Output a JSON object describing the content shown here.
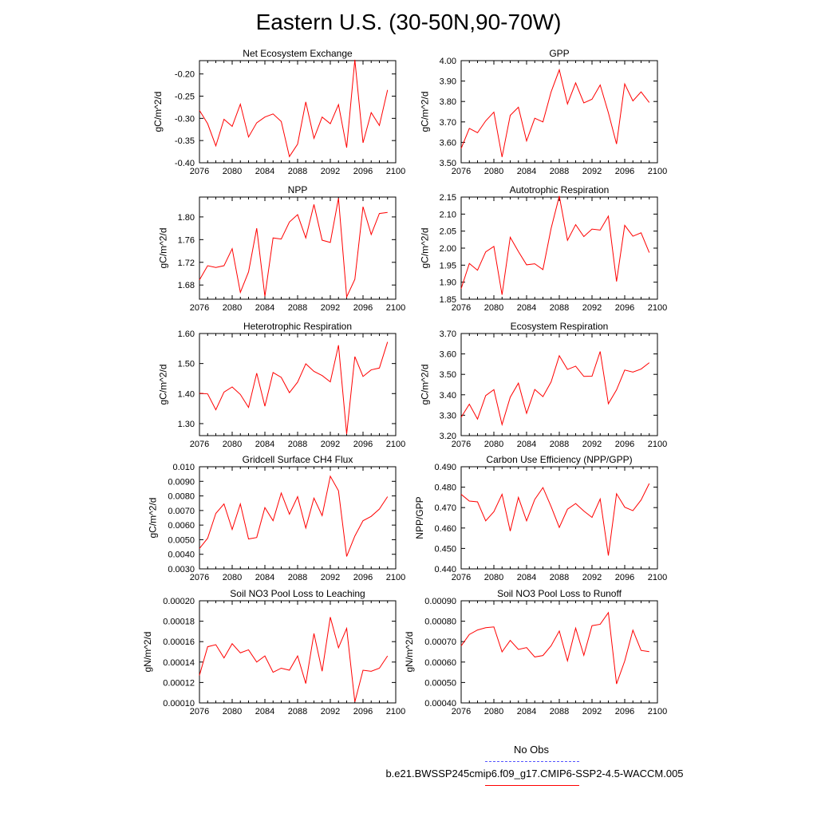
{
  "title": "Eastern U.S. (30-50N,90-70W)",
  "legend": [
    {
      "label": "No Obs",
      "color": "#0000ff",
      "style": "dashed"
    },
    {
      "label": "b.e21.BWSSP245cmip6.f09_g17.CMIP6-SSP2-4.5-WACCM.005",
      "color": "#ff0000",
      "style": "solid"
    }
  ],
  "chart_data": [
    {
      "type": "line",
      "title": "Net Ecosystem Exchange",
      "ylabel": "gC/m^2/d",
      "xlim": [
        2076,
        2100
      ],
      "xticks": [
        "2076",
        "2080",
        "2084",
        "2088",
        "2092",
        "2096",
        "2100"
      ],
      "ylim": [
        -0.4,
        -0.17
      ],
      "yticks": [
        -0.4,
        -0.35,
        -0.3,
        -0.25,
        -0.2
      ],
      "yticklabels": [
        "-0.40",
        "-0.35",
        "-0.30",
        "-0.25",
        "-0.20"
      ],
      "series": [
        {
          "color": "#ff0000",
          "x": [
            2076,
            2077,
            2078,
            2079,
            2080,
            2081,
            2082,
            2083,
            2084,
            2085,
            2086,
            2087,
            2088,
            2089,
            2090,
            2091,
            2092,
            2093,
            2094,
            2095,
            2096,
            2097,
            2098,
            2099
          ],
          "values": [
            -0.282,
            -0.312,
            -0.362,
            -0.302,
            -0.318,
            -0.268,
            -0.342,
            -0.31,
            -0.297,
            -0.29,
            -0.307,
            -0.386,
            -0.358,
            -0.263,
            -0.345,
            -0.297,
            -0.312,
            -0.269,
            -0.366,
            -0.168,
            -0.355,
            -0.287,
            -0.316,
            -0.236
          ]
        }
      ]
    },
    {
      "type": "line",
      "title": "GPP",
      "ylabel": "gC/m^2/d",
      "xlim": [
        2076,
        2100
      ],
      "xticks": [
        "2076",
        "2080",
        "2084",
        "2088",
        "2092",
        "2096",
        "2100"
      ],
      "ylim": [
        3.5,
        4.0
      ],
      "yticks": [
        3.5,
        3.6,
        3.7,
        3.8,
        3.9,
        4.0
      ],
      "yticklabels": [
        "3.50",
        "3.60",
        "3.70",
        "3.80",
        "3.90",
        "4.00"
      ],
      "series": [
        {
          "color": "#ff0000",
          "x": [
            2076,
            2077,
            2078,
            2079,
            2080,
            2081,
            2082,
            2083,
            2084,
            2085,
            2086,
            2087,
            2088,
            2089,
            2090,
            2091,
            2092,
            2093,
            2094,
            2095,
            2096,
            2097,
            2098,
            2099
          ],
          "values": [
            3.57,
            3.668,
            3.647,
            3.705,
            3.748,
            3.528,
            3.732,
            3.772,
            3.607,
            3.718,
            3.7,
            3.847,
            3.955,
            3.788,
            3.891,
            3.793,
            3.811,
            3.881,
            3.745,
            3.592,
            3.886,
            3.803,
            3.847,
            3.795
          ]
        }
      ]
    },
    {
      "type": "line",
      "title": "NPP",
      "ylabel": "gC/m^2/d",
      "xlim": [
        2076,
        2100
      ],
      "xticks": [
        "2076",
        "2080",
        "2084",
        "2088",
        "2092",
        "2096",
        "2100"
      ],
      "ylim": [
        1.655,
        1.835
      ],
      "yticks": [
        1.68,
        1.72,
        1.76,
        1.8
      ],
      "yticklabels": [
        "1.68",
        "1.72",
        "1.76",
        "1.80"
      ],
      "series": [
        {
          "color": "#ff0000",
          "x": [
            2076,
            2077,
            2078,
            2079,
            2080,
            2081,
            2082,
            2083,
            2084,
            2085,
            2086,
            2087,
            2088,
            2089,
            2090,
            2091,
            2092,
            2093,
            2094,
            2095,
            2096,
            2097,
            2098,
            2099
          ],
          "values": [
            1.689,
            1.714,
            1.711,
            1.714,
            1.744,
            1.667,
            1.703,
            1.78,
            1.66,
            1.763,
            1.761,
            1.791,
            1.804,
            1.763,
            1.822,
            1.759,
            1.755,
            1.833,
            1.659,
            1.69,
            1.818,
            1.769,
            1.806,
            1.808
          ]
        }
      ]
    },
    {
      "type": "line",
      "title": "Autotrophic Respiration",
      "ylabel": "gC/m^2/d",
      "xlim": [
        2076,
        2100
      ],
      "xticks": [
        "2076",
        "2080",
        "2084",
        "2088",
        "2092",
        "2096",
        "2100"
      ],
      "ylim": [
        1.85,
        2.15
      ],
      "yticks": [
        1.85,
        1.9,
        1.95,
        2.0,
        2.05,
        2.1,
        2.15
      ],
      "yticklabels": [
        "1.85",
        "1.90",
        "1.95",
        "2.00",
        "2.05",
        "2.10",
        "2.15"
      ],
      "series": [
        {
          "color": "#ff0000",
          "x": [
            2076,
            2077,
            2078,
            2079,
            2080,
            2081,
            2082,
            2083,
            2084,
            2085,
            2086,
            2087,
            2088,
            2089,
            2090,
            2091,
            2092,
            2093,
            2094,
            2095,
            2096,
            2097,
            2098,
            2099
          ],
          "values": [
            1.881,
            1.955,
            1.935,
            1.989,
            2.005,
            1.863,
            2.032,
            1.99,
            1.951,
            1.954,
            1.937,
            2.058,
            2.153,
            2.023,
            2.069,
            2.034,
            2.056,
            2.053,
            2.094,
            1.902,
            2.067,
            2.035,
            2.045,
            1.987
          ]
        }
      ]
    },
    {
      "type": "line",
      "title": "Heterotrophic Respiration",
      "ylabel": "gC/m^2/d",
      "xlim": [
        2076,
        2100
      ],
      "xticks": [
        "2076",
        "2080",
        "2084",
        "2088",
        "2092",
        "2096",
        "2100"
      ],
      "ylim": [
        1.26,
        1.6
      ],
      "yticks": [
        1.3,
        1.4,
        1.5,
        1.6
      ],
      "yticklabels": [
        "1.30",
        "1.40",
        "1.50",
        "1.60"
      ],
      "series": [
        {
          "color": "#ff0000",
          "x": [
            2076,
            2077,
            2078,
            2079,
            2080,
            2081,
            2082,
            2083,
            2084,
            2085,
            2086,
            2087,
            2088,
            2089,
            2090,
            2091,
            2092,
            2093,
            2094,
            2095,
            2096,
            2097,
            2098,
            2099
          ],
          "values": [
            1.401,
            1.399,
            1.346,
            1.405,
            1.422,
            1.397,
            1.354,
            1.468,
            1.358,
            1.47,
            1.454,
            1.403,
            1.438,
            1.499,
            1.474,
            1.46,
            1.439,
            1.561,
            1.265,
            1.523,
            1.457,
            1.479,
            1.485,
            1.572
          ]
        }
      ]
    },
    {
      "type": "line",
      "title": "Ecosystem Respiration",
      "ylabel": "gC/m^2/d",
      "xlim": [
        2076,
        2100
      ],
      "xticks": [
        "2076",
        "2080",
        "2084",
        "2088",
        "2092",
        "2096",
        "2100"
      ],
      "ylim": [
        3.2,
        3.7
      ],
      "yticks": [
        3.2,
        3.3,
        3.4,
        3.5,
        3.6,
        3.7
      ],
      "yticklabels": [
        "3.20",
        "3.30",
        "3.40",
        "3.50",
        "3.60",
        "3.70"
      ],
      "series": [
        {
          "color": "#ff0000",
          "x": [
            2076,
            2077,
            2078,
            2079,
            2080,
            2081,
            2082,
            2083,
            2084,
            2085,
            2086,
            2087,
            2088,
            2089,
            2090,
            2091,
            2092,
            2093,
            2094,
            2095,
            2096,
            2097,
            2098,
            2099
          ],
          "values": [
            3.29,
            3.354,
            3.281,
            3.396,
            3.425,
            3.254,
            3.388,
            3.457,
            3.309,
            3.426,
            3.391,
            3.463,
            3.591,
            3.524,
            3.54,
            3.49,
            3.491,
            3.612,
            3.356,
            3.424,
            3.521,
            3.511,
            3.526,
            3.557
          ]
        }
      ]
    },
    {
      "type": "line",
      "title": "Gridcell Surface CH4 Flux",
      "ylabel": "gC/m^2/d",
      "xlim": [
        2076,
        2100
      ],
      "xticks": [
        "2076",
        "2080",
        "2084",
        "2088",
        "2092",
        "2096",
        "2100"
      ],
      "ylim": [
        0.003,
        0.01
      ],
      "yticks": [
        0.003,
        0.004,
        0.005,
        0.006,
        0.007,
        0.008,
        0.009,
        0.01
      ],
      "yticklabels": [
        "0.0030",
        "0.0040",
        "0.0050",
        "0.0060",
        "0.0070",
        "0.0080",
        "0.0090",
        "0.010"
      ],
      "series": [
        {
          "color": "#ff0000",
          "x": [
            2076,
            2077,
            2078,
            2079,
            2080,
            2081,
            2082,
            2083,
            2084,
            2085,
            2086,
            2087,
            2088,
            2089,
            2090,
            2091,
            2092,
            2093,
            2094,
            2095,
            2096,
            2097,
            2098,
            2099
          ],
          "values": [
            0.0044,
            0.0051,
            0.0068,
            0.00745,
            0.0057,
            0.00745,
            0.00505,
            0.00515,
            0.0072,
            0.0063,
            0.0082,
            0.00675,
            0.00795,
            0.0058,
            0.00785,
            0.00665,
            0.00935,
            0.00835,
            0.00385,
            0.00525,
            0.0063,
            0.0066,
            0.0071,
            0.00795
          ]
        }
      ]
    },
    {
      "type": "line",
      "title": "Carbon Use Efficiency (NPP/GPP)",
      "ylabel": "NPP/GPP",
      "xlim": [
        2076,
        2100
      ],
      "xticks": [
        "2076",
        "2080",
        "2084",
        "2088",
        "2092",
        "2096",
        "2100"
      ],
      "ylim": [
        0.44,
        0.49
      ],
      "yticks": [
        0.44,
        0.45,
        0.46,
        0.47,
        0.48,
        0.49
      ],
      "yticklabels": [
        "0.440",
        "0.450",
        "0.460",
        "0.470",
        "0.480",
        "0.490"
      ],
      "series": [
        {
          "color": "#ff0000",
          "x": [
            2076,
            2077,
            2078,
            2079,
            2080,
            2081,
            2082,
            2083,
            2084,
            2085,
            2086,
            2087,
            2088,
            2089,
            2090,
            2091,
            2092,
            2093,
            2094,
            2095,
            2096,
            2097,
            2098,
            2099
          ],
          "values": [
            0.4765,
            0.4732,
            0.4728,
            0.4635,
            0.468,
            0.4765,
            0.4585,
            0.475,
            0.4635,
            0.474,
            0.4798,
            0.4705,
            0.4603,
            0.4692,
            0.472,
            0.4683,
            0.4652,
            0.4742,
            0.4465,
            0.4768,
            0.4702,
            0.4685,
            0.4737,
            0.4818
          ]
        }
      ]
    },
    {
      "type": "line",
      "title": "Soil NO3 Pool Loss to Leaching",
      "ylabel": "gN/m^2/d",
      "xlim": [
        2076,
        2100
      ],
      "xticks": [
        "2076",
        "2080",
        "2084",
        "2088",
        "2092",
        "2096",
        "2100"
      ],
      "ylim": [
        0.0001,
        0.0002
      ],
      "yticks": [
        0.0001,
        0.00012,
        0.00014,
        0.00016,
        0.00018,
        0.0002
      ],
      "yticklabels": [
        "0.00010",
        "0.00012",
        "0.00014",
        "0.00016",
        "0.00018",
        "0.00020"
      ],
      "series": [
        {
          "color": "#ff0000",
          "x": [
            2076,
            2077,
            2078,
            2079,
            2080,
            2081,
            2082,
            2083,
            2084,
            2085,
            2086,
            2087,
            2088,
            2089,
            2090,
            2091,
            2092,
            2093,
            2094,
            2095,
            2096,
            2097,
            2098,
            2099
          ],
          "values": [
            0.000127,
            0.000155,
            0.000157,
            0.000144,
            0.000158,
            0.000149,
            0.000152,
            0.00014,
            0.000146,
            0.00013,
            0.000134,
            0.000132,
            0.000146,
            0.000119,
            0.000168,
            0.000131,
            0.000184,
            0.000154,
            0.000173,
            0.000101,
            0.000132,
            0.000131,
            0.000134,
            0.000146
          ]
        }
      ]
    },
    {
      "type": "line",
      "title": "Soil NO3 Pool Loss to Runoff",
      "ylabel": "gN/m^2/d",
      "xlim": [
        2076,
        2100
      ],
      "xticks": [
        "2076",
        "2080",
        "2084",
        "2088",
        "2092",
        "2096",
        "2100"
      ],
      "ylim": [
        0.0004,
        0.0009
      ],
      "yticks": [
        0.0004,
        0.0005,
        0.0006,
        0.0007,
        0.0008,
        0.0009
      ],
      "yticklabels": [
        "0.00040",
        "0.00050",
        "0.00060",
        "0.00070",
        "0.00080",
        "0.00090"
      ],
      "series": [
        {
          "color": "#ff0000",
          "x": [
            2076,
            2077,
            2078,
            2079,
            2080,
            2081,
            2082,
            2083,
            2084,
            2085,
            2086,
            2087,
            2088,
            2089,
            2090,
            2091,
            2092,
            2093,
            2094,
            2095,
            2096,
            2097,
            2098,
            2099
          ],
          "values": [
            0.000679,
            0.000735,
            0.000757,
            0.000768,
            0.000772,
            0.00065,
            0.000706,
            0.000662,
            0.000671,
            0.000625,
            0.000632,
            0.00068,
            0.000752,
            0.000606,
            0.000766,
            0.000633,
            0.000778,
            0.000785,
            0.000842,
            0.000493,
            0.000605,
            0.000756,
            0.000657,
            0.000651
          ]
        }
      ]
    }
  ]
}
